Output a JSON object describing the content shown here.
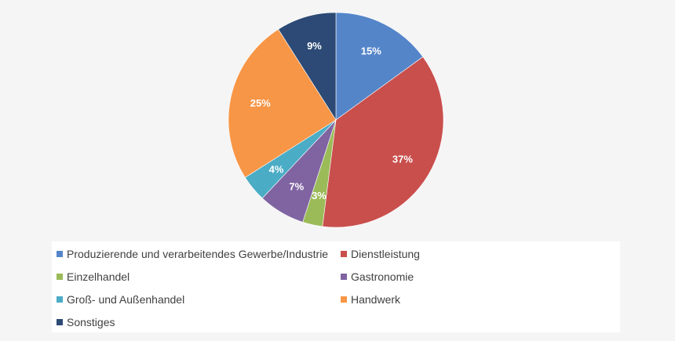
{
  "chart_data": {
    "type": "pie",
    "title": "",
    "legend_position": "bottom",
    "slices": [
      {
        "name": "Produzierende und verarbeitendes Gewerbe/Industrie",
        "value": 15,
        "label": "15%",
        "color": "#5585c9"
      },
      {
        "name": "Dienstleistung",
        "value": 37,
        "label": "37%",
        "color": "#c94f4c"
      },
      {
        "name": "Einzelhandel",
        "value": 3,
        "label": "3%",
        "color": "#9bbb59"
      },
      {
        "name": "Gastronomie",
        "value": 7,
        "label": "7%",
        "color": "#8064a2"
      },
      {
        "name": "Groß- und Außenhandel",
        "value": 4,
        "label": "4%",
        "color": "#4bacc6"
      },
      {
        "name": "Handwerk",
        "value": 25,
        "label": "25%",
        "color": "#f79646"
      },
      {
        "name": "Sonstiges",
        "value": 9,
        "label": "9%",
        "color": "#2c4a75"
      }
    ]
  }
}
